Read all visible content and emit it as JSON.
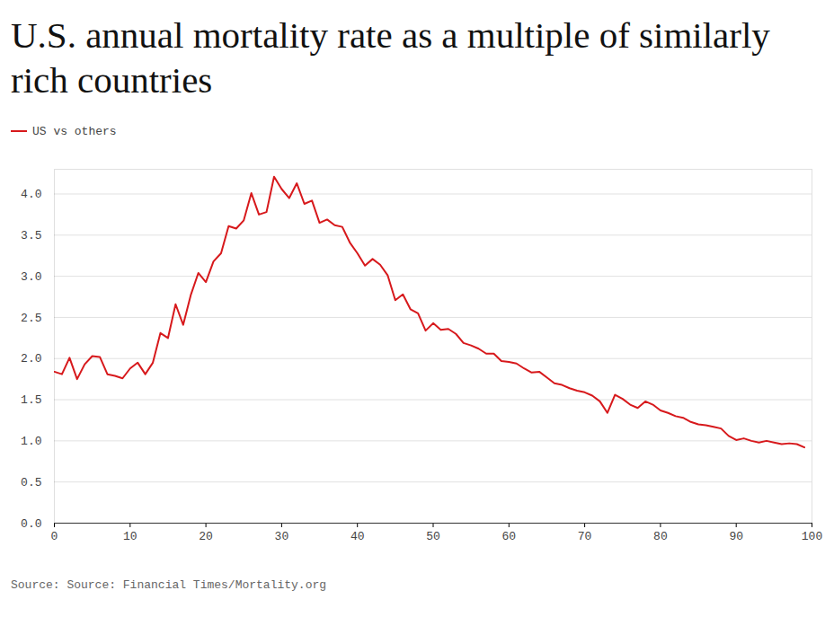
{
  "chart_data": {
    "type": "line",
    "title": "U.S. annual mortality rate as a multiple of similarly rich countries",
    "source": "Source: Source: Financial Times/Mortality.org",
    "legend": "top-left",
    "grid": true,
    "x": [
      0,
      1,
      2,
      3,
      4,
      5,
      6,
      7,
      8,
      9,
      10,
      11,
      12,
      13,
      14,
      15,
      16,
      17,
      18,
      19,
      20,
      21,
      22,
      23,
      24,
      25,
      26,
      27,
      28,
      29,
      30,
      31,
      32,
      33,
      34,
      35,
      36,
      37,
      38,
      39,
      40,
      41,
      42,
      43,
      44,
      45,
      46,
      47,
      48,
      49,
      50,
      51,
      52,
      53,
      54,
      55,
      56,
      57,
      58,
      59,
      60,
      61,
      62,
      63,
      64,
      65,
      66,
      67,
      68,
      69,
      70,
      71,
      72,
      73,
      74,
      75,
      76,
      77,
      78,
      79,
      80,
      81,
      82,
      83,
      84,
      85,
      86,
      87,
      88,
      89,
      90,
      91,
      92,
      93,
      94,
      95,
      96,
      97,
      98,
      99
    ],
    "series": [
      {
        "name": "US vs others",
        "color": "#d7191c",
        "values": [
          1.84,
          1.81,
          2.01,
          1.75,
          1.93,
          2.03,
          2.02,
          1.81,
          1.79,
          1.76,
          1.88,
          1.95,
          1.81,
          1.95,
          2.31,
          2.25,
          2.66,
          2.41,
          2.77,
          3.04,
          2.93,
          3.18,
          3.28,
          3.61,
          3.58,
          3.68,
          4.01,
          3.75,
          3.78,
          4.21,
          4.06,
          3.95,
          4.13,
          3.88,
          3.92,
          3.65,
          3.69,
          3.62,
          3.6,
          3.41,
          3.28,
          3.13,
          3.21,
          3.14,
          3.01,
          2.71,
          2.78,
          2.6,
          2.55,
          2.34,
          2.43,
          2.35,
          2.36,
          2.3,
          2.19,
          2.16,
          2.12,
          2.06,
          2.06,
          1.97,
          1.96,
          1.94,
          1.88,
          1.83,
          1.84,
          1.77,
          1.7,
          1.68,
          1.64,
          1.61,
          1.59,
          1.55,
          1.48,
          1.34,
          1.56,
          1.51,
          1.44,
          1.4,
          1.48,
          1.44,
          1.37,
          1.34,
          1.3,
          1.28,
          1.23,
          1.2,
          1.19,
          1.17,
          1.15,
          1.06,
          1.01,
          1.03,
          1.0,
          0.98,
          1.0,
          0.98,
          0.96,
          0.97,
          0.96,
          0.92
        ]
      }
    ],
    "xlim": [
      0,
      100
    ],
    "xticks": [
      0,
      10,
      20,
      30,
      40,
      50,
      60,
      70,
      80,
      90,
      100
    ],
    "ylim": [
      0,
      4.3
    ],
    "yticks": [
      0,
      0.5,
      1,
      1.5,
      2,
      2.5,
      3,
      3.5,
      4
    ]
  }
}
